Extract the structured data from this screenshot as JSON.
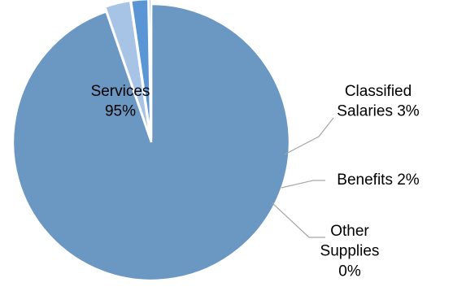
{
  "chart_data": {
    "type": "pie",
    "title": "",
    "legend": "none",
    "slices": [
      {
        "label": [
          "Services",
          "95%"
        ],
        "value": 95,
        "color": "#6b97c3"
      },
      {
        "label": [
          "Classified",
          "Salaries 3%"
        ],
        "value": 3,
        "color": "#a7c3e6"
      },
      {
        "label": [
          "Benefits 2%"
        ],
        "value": 2,
        "color": "#5a95d6"
      },
      {
        "label": [
          "Other",
          "Supplies",
          "0%"
        ],
        "value": 0.3,
        "color": "#8db0da"
      }
    ],
    "start_angle_deg": 90,
    "direction": "clockwise",
    "exploded": true
  }
}
